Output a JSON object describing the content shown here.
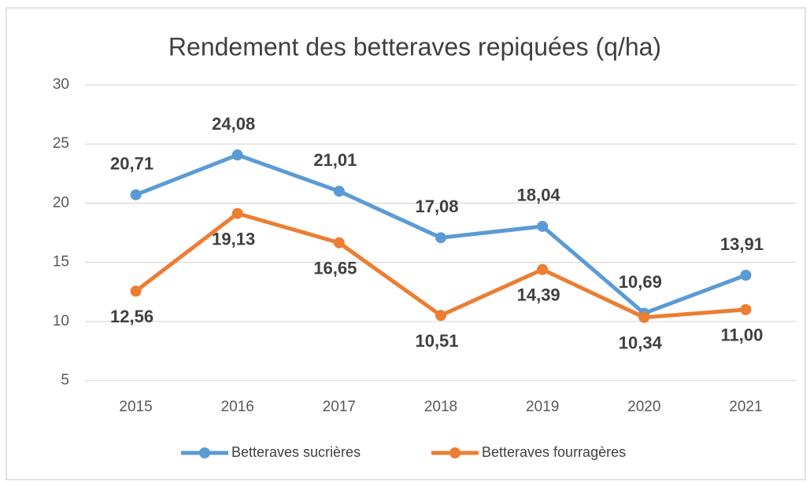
{
  "chart_data": {
    "type": "line",
    "title": "Rendement des betteraves repiquées (q/ha)",
    "categories": [
      "2015",
      "2016",
      "2017",
      "2018",
      "2019",
      "2020",
      "2021"
    ],
    "series": [
      {
        "name": "Betteraves sucrières",
        "color": "#5b9bd5",
        "values": [
          20.71,
          24.08,
          21.01,
          17.08,
          18.04,
          10.69,
          13.91
        ],
        "value_labels": [
          "20,71",
          "24,08",
          "21,01",
          "17,08",
          "18,04",
          "10,69",
          "13,91"
        ]
      },
      {
        "name": "Betteraves fourragères",
        "color": "#ed7d31",
        "values": [
          12.56,
          19.13,
          16.65,
          10.51,
          14.39,
          10.34,
          11.0
        ],
        "value_labels": [
          "12,56",
          "19,13",
          "16,65",
          "10,51",
          "14,39",
          "10,34",
          "11,00"
        ]
      }
    ],
    "ylim": [
      5,
      30
    ],
    "yticks": [
      5,
      10,
      15,
      20,
      25,
      30
    ],
    "grid": true,
    "legend": "bottom"
  }
}
